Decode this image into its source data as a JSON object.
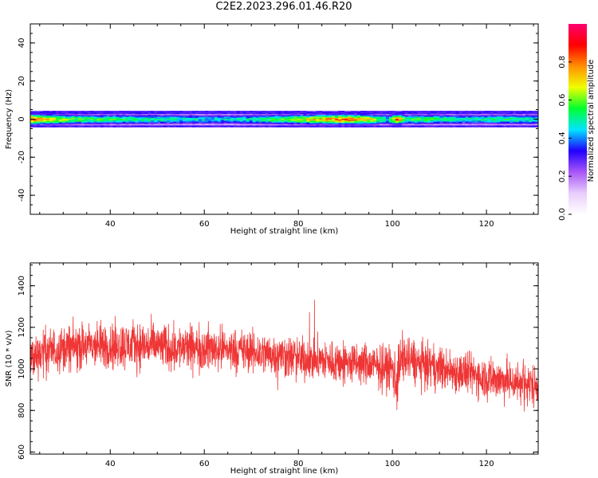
{
  "title": "C2E2.2023.296.01.46.R20",
  "colors": {
    "snr_line": "#ef3535",
    "axis": "#000000"
  },
  "chart_data": [
    {
      "type": "heatmap",
      "xlabel": "Height of straight line (km)",
      "ylabel": "Frequency (Hz)",
      "xlim": [
        23,
        131
      ],
      "ylim": [
        -50,
        50
      ],
      "xticks": [
        40,
        60,
        80,
        100,
        120
      ],
      "yticks": [
        -40,
        -20,
        0,
        20,
        40
      ],
      "colorbar": {
        "label": "Normalized spectral amplitude",
        "range": [
          0.0,
          1.0
        ],
        "ticks": [
          0.0,
          0.2,
          0.4,
          0.6,
          0.8
        ],
        "colormap": [
          "#ffffff",
          "#e8cdfc",
          "#a855f7",
          "#2000ff",
          "#00e5ff",
          "#00ff30",
          "#f0ff00",
          "#ff9000",
          "#ff0000",
          "#ff0070"
        ]
      },
      "band_center_hz": 0,
      "band_halfwidth_hz": 4,
      "peak_profile": {
        "x": [
          23,
          30,
          35,
          40,
          45,
          50,
          55,
          60,
          65,
          70,
          75,
          80,
          85,
          90,
          95,
          99,
          101,
          103,
          105,
          110,
          115,
          120,
          125,
          131
        ],
        "amplitude": [
          0.82,
          0.62,
          0.55,
          0.55,
          0.52,
          0.5,
          0.48,
          0.45,
          0.45,
          0.48,
          0.55,
          0.62,
          0.72,
          0.8,
          0.7,
          0.45,
          0.85,
          0.5,
          0.58,
          0.52,
          0.48,
          0.5,
          0.52,
          0.48
        ]
      }
    },
    {
      "type": "line",
      "xlabel": "Height of straight line (km)",
      "ylabel": "SNR (10 * v/v)",
      "xlim": [
        23,
        131
      ],
      "ylim": [
        590,
        1510
      ],
      "xticks": [
        40,
        60,
        80,
        100,
        120
      ],
      "yticks": [
        600,
        800,
        1000,
        1200,
        1400
      ],
      "series": [
        {
          "x": [
            23,
            25,
            30,
            35,
            40,
            45,
            50,
            55,
            60,
            65,
            70,
            75,
            80,
            85,
            90,
            95,
            100,
            101,
            102,
            105,
            110,
            115,
            120,
            125,
            131
          ],
          "mean": [
            1050,
            1080,
            1100,
            1110,
            1110,
            1115,
            1110,
            1100,
            1100,
            1095,
            1080,
            1070,
            1050,
            1040,
            1030,
            1020,
            1000,
            950,
            1060,
            1030,
            1000,
            980,
            960,
            940,
            920
          ],
          "spread": [
            180,
            160,
            160,
            160,
            170,
            170,
            160,
            160,
            160,
            150,
            150,
            150,
            150,
            150,
            150,
            150,
            160,
            260,
            170,
            160,
            150,
            150,
            150,
            150,
            150
          ]
        }
      ]
    }
  ]
}
